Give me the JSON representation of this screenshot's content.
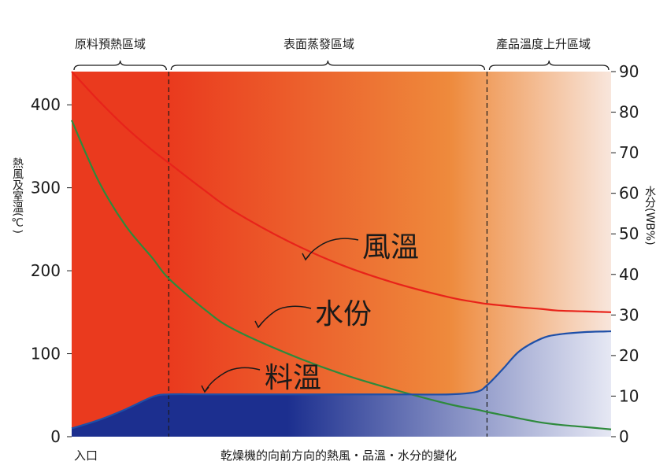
{
  "colors": {
    "hot": "#ea3a1e",
    "mid": "#ee8a3c",
    "light": "#f8e6dc",
    "air_temp_line": "#e8231a",
    "moisture_line": "#2e8a3c",
    "material_temp_line": "#1e4fa8",
    "material_fill_dark": "#1c2f8f",
    "material_fill_light": "#e6e8f4"
  },
  "chart_data": {
    "type": "line",
    "zones": [
      {
        "label": "原料預熱區域",
        "x_start": 0,
        "x_end": 18
      },
      {
        "label": "表面蒸發區域",
        "x_start": 18,
        "x_end": 77
      },
      {
        "label": "產品溫度上升區域",
        "x_start": 77,
        "x_end": 100
      }
    ],
    "x": [
      0,
      5,
      10,
      15,
      18,
      25,
      30,
      40,
      50,
      60,
      70,
      75,
      77,
      80,
      83,
      87,
      90,
      95,
      100
    ],
    "xlim": [
      0,
      100
    ],
    "left_axis": {
      "label": "熱風及室溫(℃)",
      "ylim": [
        0,
        440
      ],
      "ticks": [
        "0",
        "100",
        "200",
        "300",
        "400"
      ]
    },
    "right_axis": {
      "label": "水分(WB%)",
      "ylim": [
        0,
        90
      ],
      "ticks": [
        "0",
        "10",
        "20",
        "30",
        "40",
        "50",
        "60",
        "70",
        "80",
        "90"
      ]
    },
    "series": [
      {
        "name": "風溫",
        "axis": "left",
        "values": [
          440,
          405,
          373,
          345,
          330,
          295,
          272,
          236,
          207,
          185,
          168,
          162,
          160,
          158,
          156,
          154,
          152,
          151,
          150
        ]
      },
      {
        "name": "水份",
        "axis": "right",
        "values": [
          78,
          63,
          52,
          44,
          39,
          31,
          26.5,
          20.5,
          15.5,
          11.5,
          8,
          6.7,
          6.1,
          5.3,
          4.5,
          3.5,
          3,
          2.4,
          1.8
        ]
      },
      {
        "name": "料溫",
        "axis": "left",
        "values": [
          10,
          20,
          33,
          48,
          51,
          51,
          51,
          51,
          51,
          51,
          51,
          54,
          62,
          82,
          103,
          118,
          123,
          126,
          127
        ]
      }
    ],
    "bottom_labels": {
      "left": "入口",
      "center": "乾燥機的向前方向的熱風・品溫・水分的變化"
    }
  }
}
